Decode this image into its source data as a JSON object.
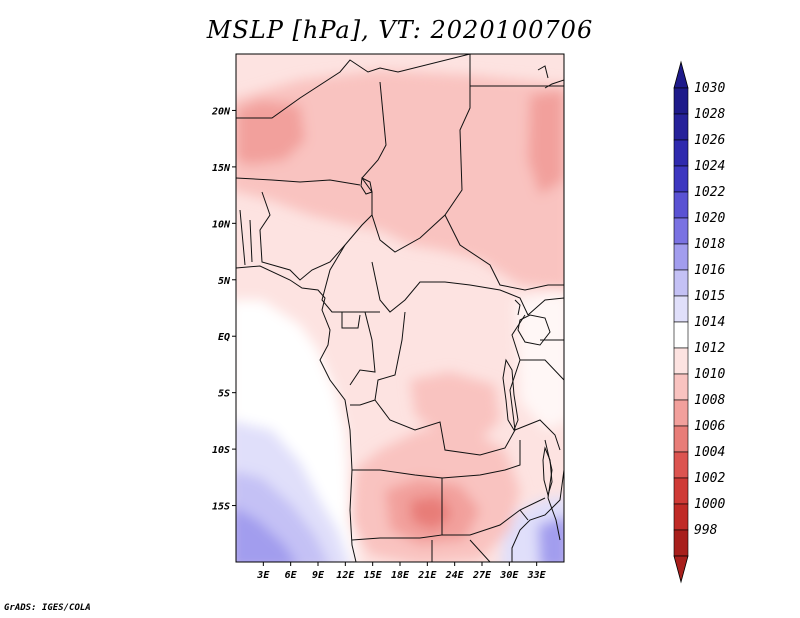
{
  "title": "MSLP [hPa], VT: 2020100706",
  "credit": "GrADS: IGES/COLA",
  "map": {
    "variable": "Mean sea level pressure",
    "units": "hPa",
    "valid_time": "2020100706",
    "region": "Central and southern Africa",
    "lon_range": [
      0,
      36
    ],
    "lat_range": [
      -20,
      25
    ],
    "lat_ticks": [
      {
        "value": 20,
        "label": "20N"
      },
      {
        "value": 15,
        "label": "15N"
      },
      {
        "value": 10,
        "label": "10N"
      },
      {
        "value": 5,
        "label": "5N"
      },
      {
        "value": 0,
        "label": "EQ"
      },
      {
        "value": -5,
        "label": "5S"
      },
      {
        "value": -10,
        "label": "10S"
      },
      {
        "value": -15,
        "label": "15S"
      }
    ],
    "lon_ticks": [
      {
        "value": 3,
        "label": "3E"
      },
      {
        "value": 6,
        "label": "6E"
      },
      {
        "value": 9,
        "label": "9E"
      },
      {
        "value": 12,
        "label": "12E"
      },
      {
        "value": 15,
        "label": "15E"
      },
      {
        "value": 18,
        "label": "18E"
      },
      {
        "value": 21,
        "label": "21E"
      },
      {
        "value": 24,
        "label": "24E"
      },
      {
        "value": 27,
        "label": "27E"
      },
      {
        "value": 30,
        "label": "30E"
      },
      {
        "value": 33,
        "label": "33E"
      }
    ]
  },
  "colorbar": {
    "levels": [
      {
        "label": "1030",
        "color": "#1e1a8a"
      },
      {
        "label": "1028",
        "color": "#26219a"
      },
      {
        "label": "1026",
        "color": "#2f2aae"
      },
      {
        "label": "1024",
        "color": "#3d37c0"
      },
      {
        "label": "1022",
        "color": "#5a52d3"
      },
      {
        "label": "1020",
        "color": "#7a72e2"
      },
      {
        "label": "1018",
        "color": "#a29dee"
      },
      {
        "label": "1016",
        "color": "#c4c1f5"
      },
      {
        "label": "1015",
        "color": "#e0dffa"
      },
      {
        "label": "1014",
        "color": "#ffffff"
      },
      {
        "label": "1012",
        "color": "#fde3e1"
      },
      {
        "label": "1010",
        "color": "#f9c3c0"
      },
      {
        "label": "1008",
        "color": "#f2a09c"
      },
      {
        "label": "1006",
        "color": "#e87d78"
      },
      {
        "label": "1004",
        "color": "#dc5450"
      },
      {
        "label": "1002",
        "color": "#cf3a36"
      },
      {
        "label": "1000",
        "color": "#c02a26"
      },
      {
        "label": "998",
        "color": "#a81f1c"
      }
    ],
    "top_arrow_color": "#1e1a8a",
    "bottom_arrow_color": "#a81f1c"
  }
}
